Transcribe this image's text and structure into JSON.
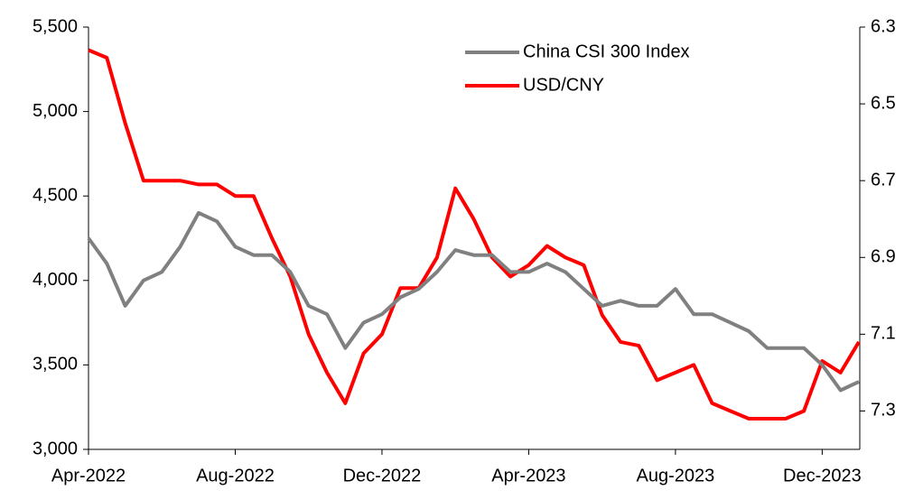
{
  "chart_data": {
    "type": "line",
    "categories": [
      "Apr-2022",
      null,
      null,
      null,
      null,
      null,
      null,
      null,
      "Aug-2022",
      null,
      null,
      null,
      null,
      null,
      null,
      null,
      "Dec-2022",
      null,
      null,
      null,
      null,
      null,
      null,
      null,
      "Apr-2023",
      null,
      null,
      null,
      null,
      null,
      null,
      null,
      "Aug-2023",
      null,
      null,
      null,
      null,
      null,
      null,
      null,
      "Dec-2023",
      null,
      null
    ],
    "series": [
      {
        "name": "China CSI 300 Index",
        "color": "#808080",
        "axis": "y",
        "values": [
          4250,
          4100,
          3850,
          4000,
          4050,
          4200,
          4400,
          4350,
          4200,
          4150,
          4150,
          4050,
          3850,
          3800,
          3600,
          3750,
          3800,
          3900,
          3950,
          4050,
          4180,
          4150,
          4150,
          4050,
          4050,
          4100,
          4050,
          3950,
          3850,
          3880,
          3850,
          3850,
          3950,
          3800,
          3800,
          3750,
          3700,
          3600,
          3600,
          3600,
          3500,
          3350,
          3400
        ]
      },
      {
        "name": "USD/CNY",
        "color": "#ff0000",
        "axis": "y2",
        "values": [
          6.36,
          6.38,
          6.55,
          6.7,
          6.7,
          6.7,
          6.71,
          6.71,
          6.74,
          6.74,
          6.85,
          6.95,
          7.1,
          7.2,
          7.28,
          7.15,
          7.1,
          6.98,
          6.98,
          6.9,
          6.72,
          6.8,
          6.9,
          6.95,
          6.92,
          6.87,
          6.9,
          6.92,
          7.05,
          7.12,
          7.13,
          7.22,
          7.2,
          7.18,
          7.28,
          7.3,
          7.32,
          7.32,
          7.32,
          7.3,
          7.17,
          7.2,
          7.12
        ]
      }
    ],
    "ylim": [
      3000,
      5500
    ],
    "yticks": [
      {
        "value": 3000,
        "label": "3,000"
      },
      {
        "value": 3500,
        "label": "3,500"
      },
      {
        "value": 4000,
        "label": "4,000"
      },
      {
        "value": 4500,
        "label": "4,500"
      },
      {
        "value": 5000,
        "label": "5,000"
      },
      {
        "value": 5500,
        "label": "5,500"
      }
    ],
    "y2lim": [
      6.3,
      7.4
    ],
    "y2ticks": [
      6.3,
      6.5,
      6.7,
      6.9,
      7.1,
      7.3
    ],
    "y2_inverted": true,
    "grid": false,
    "legend": "top-right"
  }
}
